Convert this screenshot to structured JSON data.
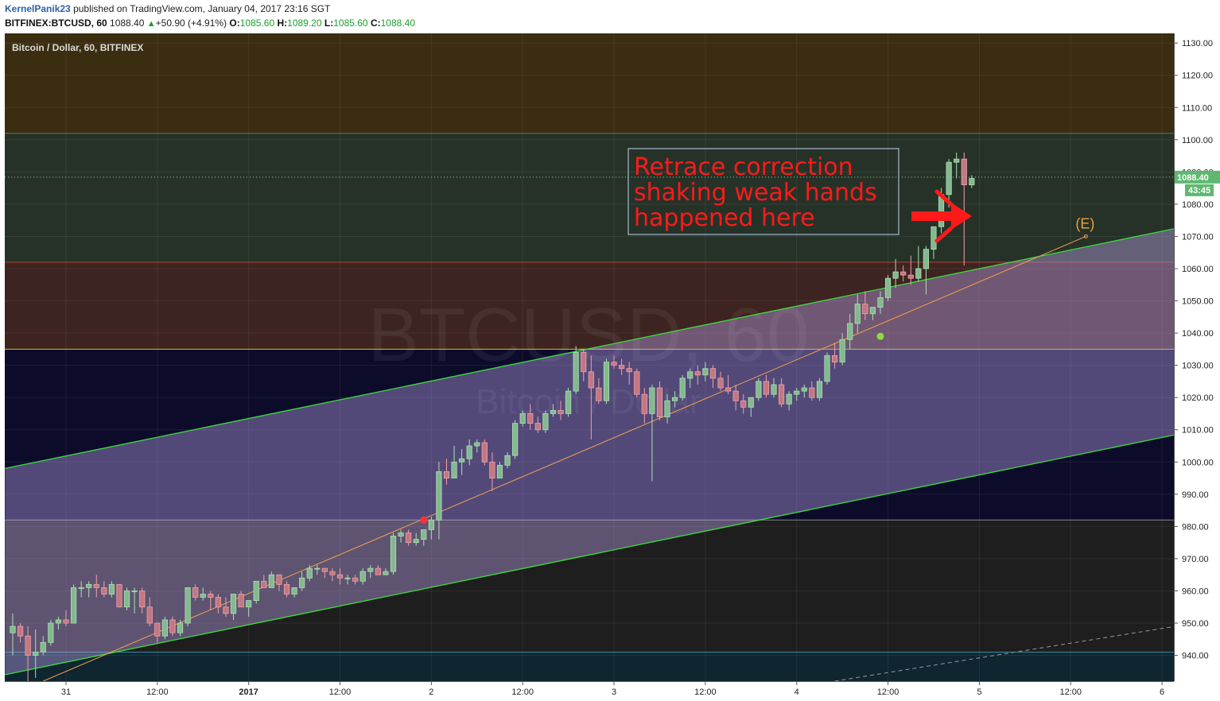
{
  "header": {
    "author": "KernelPanik23",
    "published": "published on TradingView.com, January 04, 2017 23:16 SGT",
    "symbol": "BITFINEX:BTCUSD, 60",
    "last": "1088.40",
    "change": "+50.90 (+4.91%)",
    "open_label": "O:",
    "open": "1085.60",
    "high_label": "H:",
    "high": "1089.20",
    "low_label": "L:",
    "low": "1085.60",
    "close_label": "C:",
    "close": "1088.40"
  },
  "chart_data": {
    "type": "candlestick",
    "title": "Bitcoin / Dollar, 60, BITFINEX",
    "watermark_main": "BTCUSD, 60",
    "watermark_sub": "Bitcoin / Dollar",
    "y_ticks": [
      940,
      950,
      960,
      970,
      980,
      990,
      1000,
      1010,
      1020,
      1030,
      1040,
      1050,
      1060,
      1070,
      1080,
      1090,
      1100,
      1110,
      1120,
      1130
    ],
    "y_tick_labels": [
      "940.00",
      "950.00",
      "960.00",
      "970.00",
      "980.00",
      "990.00",
      "1000.00",
      "1010.00",
      "1020.00",
      "1030.00",
      "1040.00",
      "1050.00",
      "1060.00",
      "1070.00",
      "1080.00",
      "1090.00",
      "1100.00",
      "1110.00",
      "1120.00",
      "1130.00"
    ],
    "ylim": [
      932,
      1133
    ],
    "x_ticks": [
      {
        "label": "31",
        "bold": false,
        "bar": 7
      },
      {
        "label": "12:00",
        "bold": false,
        "bar": 19
      },
      {
        "label": "2017",
        "bold": true,
        "bar": 31
      },
      {
        "label": "12:00",
        "bold": false,
        "bar": 43
      },
      {
        "label": "2",
        "bold": false,
        "bar": 55
      },
      {
        "label": "12:00",
        "bold": false,
        "bar": 67
      },
      {
        "label": "3",
        "bold": false,
        "bar": 79
      },
      {
        "label": "12:00",
        "bold": false,
        "bar": 91
      },
      {
        "label": "4",
        "bold": false,
        "bar": 103
      },
      {
        "label": "12:00",
        "bold": false,
        "bar": 115
      },
      {
        "label": "5",
        "bold": false,
        "bar": 127
      },
      {
        "label": "12:00",
        "bold": false,
        "bar": 139
      },
      {
        "label": "6",
        "bold": false,
        "bar": 151
      }
    ],
    "candles": [
      [
        947,
        953,
        940,
        949
      ],
      [
        949,
        950,
        944,
        946
      ],
      [
        946,
        949,
        932,
        940
      ],
      [
        940,
        948,
        933,
        941
      ],
      [
        941,
        946,
        940,
        944
      ],
      [
        944,
        951,
        943,
        950
      ],
      [
        950,
        952,
        948,
        951
      ],
      [
        951,
        954,
        949,
        950
      ],
      [
        950,
        962,
        950,
        961
      ],
      [
        961,
        963,
        958,
        961
      ],
      [
        961,
        963,
        958,
        962
      ],
      [
        962,
        965,
        958,
        961
      ],
      [
        961,
        963,
        958,
        959
      ],
      [
        959,
        963,
        958,
        962
      ],
      [
        962,
        962,
        956,
        955
      ],
      [
        955,
        961,
        954,
        960
      ],
      [
        960,
        961,
        953,
        960
      ],
      [
        960,
        961,
        953,
        955
      ],
      [
        955,
        958,
        949,
        950
      ],
      [
        950,
        950,
        944,
        946
      ],
      [
        946,
        952,
        945,
        951
      ],
      [
        951,
        952,
        946,
        947
      ],
      [
        947,
        951,
        946,
        950
      ],
      [
        950,
        961,
        949,
        961
      ],
      [
        961,
        962,
        957,
        958
      ],
      [
        958,
        961,
        957,
        959
      ],
      [
        959,
        960,
        954,
        958
      ],
      [
        958,
        959,
        953,
        955
      ],
      [
        955,
        958,
        952,
        953
      ],
      [
        953,
        959,
        951,
        959
      ],
      [
        959,
        960,
        955,
        955
      ],
      [
        955,
        957,
        952,
        957
      ],
      [
        957,
        963,
        956,
        963
      ],
      [
        963,
        965,
        961,
        961
      ],
      [
        961,
        966,
        961,
        965
      ],
      [
        965,
        965,
        960,
        962
      ],
      [
        962,
        963,
        958,
        959
      ],
      [
        959,
        961,
        958,
        961
      ],
      [
        961,
        966,
        960,
        964
      ],
      [
        964,
        968,
        963,
        967
      ],
      [
        967,
        968,
        965,
        967
      ],
      [
        967,
        967,
        964,
        966
      ],
      [
        966,
        967,
        963,
        965
      ],
      [
        965,
        967,
        962,
        964
      ],
      [
        964,
        965,
        962,
        964
      ],
      [
        964,
        965,
        962,
        963
      ],
      [
        963,
        967,
        962,
        966
      ],
      [
        966,
        968,
        964,
        967
      ],
      [
        967,
        968,
        965,
        965
      ],
      [
        965,
        967,
        965,
        966
      ],
      [
        966,
        978,
        965,
        977
      ],
      [
        977,
        979,
        975,
        978
      ],
      [
        978,
        979,
        974,
        975
      ],
      [
        975,
        978,
        974,
        976
      ],
      [
        976,
        979,
        974,
        979
      ],
      [
        979,
        983,
        976,
        982
      ],
      [
        982,
        1000,
        976,
        997
      ],
      [
        997,
        1001,
        993,
        995
      ],
      [
        995,
        1005,
        995,
        1000
      ],
      [
        1000,
        1004,
        996,
        1001
      ],
      [
        1001,
        1007,
        999,
        1005
      ],
      [
        1005,
        1007,
        1003,
        1006
      ],
      [
        1006,
        1007,
        999,
        1000
      ],
      [
        1000,
        1003,
        991,
        995
      ],
      [
        995,
        1000,
        995,
        999
      ],
      [
        999,
        1003,
        998,
        1002
      ],
      [
        1002,
        1013,
        1001,
        1012
      ],
      [
        1012,
        1016,
        1011,
        1015
      ],
      [
        1015,
        1018,
        1010,
        1012
      ],
      [
        1012,
        1014,
        1009,
        1010
      ],
      [
        1010,
        1016,
        1009,
        1015
      ],
      [
        1015,
        1018,
        1014,
        1016
      ],
      [
        1016,
        1019,
        1013,
        1015
      ],
      [
        1015,
        1023,
        1014,
        1022
      ],
      [
        1022,
        1036,
        1021,
        1034
      ],
      [
        1034,
        1035,
        1025,
        1028
      ],
      [
        1028,
        1033,
        1007,
        1023
      ],
      [
        1023,
        1026,
        1018,
        1019
      ],
      [
        1019,
        1032,
        1018,
        1031
      ],
      [
        1031,
        1033,
        1029,
        1030
      ],
      [
        1030,
        1032,
        1027,
        1029
      ],
      [
        1029,
        1031,
        1024,
        1028
      ],
      [
        1028,
        1029,
        1020,
        1021
      ],
      [
        1021,
        1023,
        1012,
        1015
      ],
      [
        1015,
        1024,
        994,
        1023
      ],
      [
        1023,
        1025,
        1013,
        1014
      ],
      [
        1014,
        1021,
        1012,
        1019
      ],
      [
        1019,
        1022,
        1017,
        1020
      ],
      [
        1020,
        1027,
        1019,
        1026
      ],
      [
        1026,
        1029,
        1023,
        1028
      ],
      [
        1028,
        1030,
        1024,
        1027
      ],
      [
        1027,
        1031,
        1025,
        1029
      ],
      [
        1029,
        1030,
        1023,
        1026
      ],
      [
        1026,
        1028,
        1022,
        1023
      ],
      [
        1023,
        1027,
        1021,
        1022
      ],
      [
        1022,
        1024,
        1016,
        1019
      ],
      [
        1019,
        1021,
        1015,
        1017
      ],
      [
        1017,
        1020,
        1014,
        1020
      ],
      [
        1020,
        1026,
        1019,
        1025
      ],
      [
        1025,
        1027,
        1020,
        1021
      ],
      [
        1021,
        1026,
        1020,
        1024
      ],
      [
        1024,
        1026,
        1017,
        1018
      ],
      [
        1018,
        1022,
        1016,
        1021
      ],
      [
        1021,
        1023,
        1019,
        1022
      ],
      [
        1022,
        1024,
        1020,
        1023
      ],
      [
        1023,
        1025,
        1019,
        1020
      ],
      [
        1020,
        1026,
        1019,
        1025
      ],
      [
        1025,
        1034,
        1024,
        1033
      ],
      [
        1033,
        1037,
        1029,
        1031
      ],
      [
        1031,
        1040,
        1030,
        1038
      ],
      [
        1038,
        1046,
        1035,
        1043
      ],
      [
        1043,
        1052,
        1040,
        1049
      ],
      [
        1049,
        1053,
        1044,
        1046
      ],
      [
        1046,
        1048,
        1044,
        1048
      ],
      [
        1048,
        1053,
        1046,
        1051
      ],
      [
        1051,
        1058,
        1050,
        1057
      ],
      [
        1057,
        1063,
        1054,
        1059
      ],
      [
        1059,
        1061,
        1056,
        1058
      ],
      [
        1058,
        1064,
        1055,
        1057
      ],
      [
        1057,
        1067,
        1056,
        1060
      ],
      [
        1060,
        1067,
        1052,
        1066
      ],
      [
        1066,
        1073,
        1063,
        1073
      ],
      [
        1073,
        1085,
        1071,
        1083
      ],
      [
        1083,
        1094,
        1079,
        1093
      ],
      [
        1093,
        1096,
        1088,
        1094
      ],
      [
        1094,
        1096,
        1061,
        1086
      ],
      [
        1086,
        1089,
        1085,
        1088
      ]
    ],
    "zones": [
      {
        "from": 1102,
        "to": 1133,
        "color": "#3b2d10"
      },
      {
        "from": 1062,
        "to": 1102,
        "color": "#263228"
      },
      {
        "from": 1035,
        "to": 1062,
        "color": "#3d2420"
      },
      {
        "from": 982,
        "to": 1035,
        "color": "#0c0c2a"
      },
      {
        "from": 941,
        "to": 982,
        "color": "#1e1e1e"
      },
      {
        "from": 932,
        "to": 941,
        "color": "#0f2530"
      }
    ],
    "channel": {
      "upper": [
        [
          -1,
          998
        ],
        [
          158,
          1075
        ]
      ],
      "lower": [
        [
          -1,
          934
        ],
        [
          158,
          1011
        ]
      ]
    },
    "trendline": [
      [
        4,
        932
      ],
      [
        141,
        1070
      ]
    ],
    "trendline_label": "(E)",
    "markers": [
      {
        "bar": 54,
        "value": 982,
        "color": "#ff3333"
      },
      {
        "bar": 114,
        "value": 1039,
        "color": "#8fdb3d"
      }
    ],
    "dashed_line": [
      [
        108,
        932
      ],
      [
        158,
        951
      ]
    ],
    "last_price": "1088.40",
    "countdown": "43:45",
    "annotation": [
      "Retrace correction",
      "shaking weak hands",
      "happened here"
    ]
  }
}
